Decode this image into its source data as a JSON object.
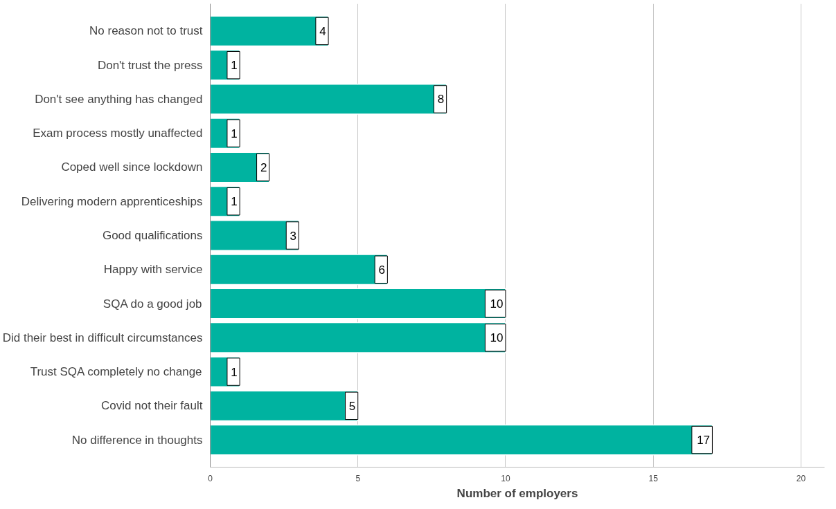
{
  "chart_data": {
    "type": "bar",
    "orientation": "horizontal",
    "xlabel": "Number of employers",
    "categories": [
      "No reason not to trust",
      "Don't trust the press",
      "Don't see anything has changed",
      "Exam process mostly unaffected",
      "Coped well since lockdown",
      "Delivering modern apprenticeships",
      "Good qualifications",
      "Happy with service",
      "SQA do a good job",
      "Did their best in difficult circumstances",
      "Trust SQA completely no change",
      "Covid not their fault",
      "No difference in thoughts"
    ],
    "values": [
      4,
      1,
      8,
      1,
      2,
      1,
      3,
      6,
      10,
      10,
      1,
      5,
      17
    ],
    "color": "#00b3a0",
    "xlim": [
      0,
      20.8
    ],
    "xticks": [
      0,
      5,
      10,
      15,
      20
    ],
    "grid": "x",
    "data_labels": true
  }
}
